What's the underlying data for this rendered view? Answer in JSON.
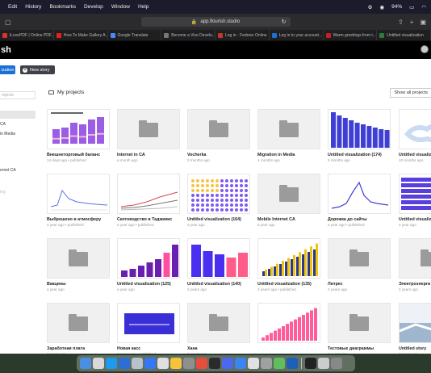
{
  "menubar": {
    "items": [
      "Edit",
      "History",
      "Bookmarks",
      "Develop",
      "Window",
      "Help"
    ],
    "battery": "94%"
  },
  "browser": {
    "url": "app.flourish.studio",
    "tabs": [
      {
        "label": "iLovePDF | Online PDF...",
        "color": "#d9342b"
      },
      {
        "label": "How To Make Gallery A...",
        "color": "#e62117"
      },
      {
        "label": "Google Translate",
        "color": "#4a8af4"
      },
      {
        "label": "Become a Vice Develo...",
        "color": "#777777"
      },
      {
        "label": "Log in · Fedorer Online",
        "color": "#c0392b"
      },
      {
        "label": "Log in to your account...",
        "color": "#1f6fd1"
      },
      {
        "label": "Warm greetings from t...",
        "color": "#c5221f"
      },
      {
        "label": "Untitled visualization",
        "color": "#2a7d3f"
      }
    ]
  },
  "app": {
    "logo": "sh",
    "btn_visualization": "ization",
    "btn_new_story": "New story",
    "search_placeholder": "rojects",
    "sidebar_items": [
      "CA",
      "in Media",
      "ernet CA",
      "ing"
    ],
    "projects_title": "My projects",
    "show_all": "Show all projects"
  },
  "cards": [
    {
      "title": "Внешнеторговый баланс",
      "meta": "14 days ago • published",
      "thumb": "bars-purple"
    },
    {
      "title": "Internet in CA",
      "meta": "a month ago",
      "thumb": "folder"
    },
    {
      "title": "Vocherka",
      "meta": "2 months ago",
      "thumb": "folder"
    },
    {
      "title": "Migration in Media",
      "meta": "4 months ago",
      "thumb": "folder"
    },
    {
      "title": "Untitled visualization (174)",
      "meta": "5 months ago",
      "thumb": "bars-indigo"
    },
    {
      "title": "Untitled visualiz",
      "meta": "10 months ago",
      "thumb": "map"
    },
    {
      "title": "Выброшено в атмосферу",
      "meta": "a year ago • published",
      "thumb": "line"
    },
    {
      "title": "Скотоводство в Таджикис",
      "meta": "a year ago • published",
      "thumb": "multiline"
    },
    {
      "title": "Untitled visualization (164)",
      "meta": "a year ago",
      "thumb": "waffle"
    },
    {
      "title": "Mobile Internet CA",
      "meta": "a year ago",
      "thumb": "folder"
    },
    {
      "title": "Дорожка до сайты",
      "meta": "a year ago • published",
      "thumb": "line2"
    },
    {
      "title": "Untitled visualiz",
      "meta": "a year ago",
      "thumb": "stack"
    },
    {
      "title": "Вакцины",
      "meta": "a year ago",
      "thumb": "folder"
    },
    {
      "title": "Untitled visualization (125)",
      "meta": "a year ago",
      "thumb": "bars-mixed"
    },
    {
      "title": "Untitled visualization (140)",
      "meta": "2 years ago",
      "thumb": "bars-mixed2"
    },
    {
      "title": "Untitled visualization (135)",
      "meta": "2 years ago • published",
      "thumb": "bars-yellow"
    },
    {
      "title": "Литрес",
      "meta": "2 years ago",
      "thumb": "folder"
    },
    {
      "title": "Электроэнерги",
      "meta": "2 years ago",
      "thumb": "folder"
    },
    {
      "title": "Заработная плата",
      "meta": "2 years ago",
      "thumb": "folder"
    },
    {
      "title": "Новая касс",
      "meta": "2 years ago • published",
      "thumb": "slide"
    },
    {
      "title": "Хана",
      "meta": "2 years ago",
      "thumb": "folder"
    },
    {
      "title": "",
      "meta": "",
      "thumb": "bars-pink"
    },
    {
      "title": "Тестовые диаграммы",
      "meta": "2 years ago",
      "thumb": "folder"
    },
    {
      "title": "Untitled story",
      "meta": "2 years ago",
      "thumb": "photo"
    }
  ],
  "dock_colors": [
    "#4a90e2",
    "#d9d9d9",
    "#1c9bf0",
    "#2a6ed6",
    "#b9c2cc",
    "#3478f6",
    "#e0e0e0",
    "#f3c33a",
    "#8f8f8f",
    "#e84c3d",
    "#2b2b2b",
    "#4a68f0",
    "#3a86f0",
    "#e0e0e0",
    "#a0a0a0",
    "#5fbf5f",
    "#1e5fb8",
    "#222222",
    "#cccccc",
    "#888888"
  ]
}
